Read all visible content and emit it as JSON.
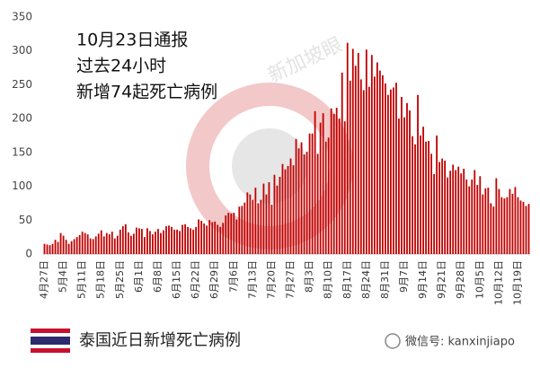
{
  "chart_data": {
    "type": "bar",
    "annotation": [
      "10月23日通报",
      "过去24小时",
      "新增74起死亡病例"
    ],
    "watermark": "新加坡眼",
    "caption": "泰国近日新增死亡病例",
    "source": "微信号: kanxinjiapo",
    "color": "#c00000",
    "ylim": [
      0,
      350
    ],
    "yticks": [
      0,
      50,
      100,
      150,
      200,
      250,
      300,
      350
    ],
    "grid": false,
    "categories": [
      "4月27日",
      null,
      null,
      null,
      null,
      null,
      null,
      "5月4日",
      null,
      null,
      null,
      null,
      null,
      null,
      "5月11日",
      null,
      null,
      null,
      null,
      null,
      null,
      "5月18日",
      null,
      null,
      null,
      null,
      null,
      null,
      "5月25日",
      null,
      null,
      null,
      null,
      null,
      null,
      "6月1日",
      null,
      null,
      null,
      null,
      null,
      null,
      "6月8日",
      null,
      null,
      null,
      null,
      null,
      null,
      "6月15日",
      null,
      null,
      null,
      null,
      null,
      null,
      "6月22日",
      null,
      null,
      null,
      null,
      null,
      null,
      "6月29日",
      null,
      null,
      null,
      null,
      null,
      null,
      "7月6日",
      null,
      null,
      null,
      null,
      null,
      null,
      "7月13日",
      null,
      null,
      null,
      null,
      null,
      null,
      "7月20日",
      null,
      null,
      null,
      null,
      null,
      null,
      "7月27日",
      null,
      null,
      null,
      null,
      null,
      null,
      "8月3日",
      null,
      null,
      null,
      null,
      null,
      null,
      "8月10日",
      null,
      null,
      null,
      null,
      null,
      null,
      "8月17日",
      null,
      null,
      null,
      null,
      null,
      null,
      "8月24日",
      null,
      null,
      null,
      null,
      null,
      null,
      "8月31日",
      null,
      null,
      null,
      null,
      null,
      null,
      "9月7日",
      null,
      null,
      null,
      null,
      null,
      null,
      "9月14日",
      null,
      null,
      null,
      null,
      null,
      null,
      "9月21日",
      null,
      null,
      null,
      null,
      null,
      null,
      "9月28日",
      null,
      null,
      null,
      null,
      null,
      null,
      "10月5日",
      null,
      null,
      null,
      null,
      null,
      null,
      "10月12日",
      null,
      null,
      null,
      null,
      null,
      null,
      "10月19日",
      null,
      null,
      null,
      null
    ],
    "values": [
      15,
      14,
      13,
      15,
      21,
      18,
      31,
      27,
      21,
      15,
      19,
      22,
      25,
      28,
      33,
      31,
      29,
      23,
      22,
      26,
      30,
      35,
      26,
      31,
      29,
      33,
      23,
      27,
      36,
      41,
      44,
      32,
      27,
      30,
      39,
      38,
      37,
      25,
      38,
      34,
      29,
      33,
      37,
      31,
      35,
      41,
      42,
      40,
      36,
      36,
      34,
      43,
      44,
      40,
      38,
      36,
      40,
      51,
      49,
      45,
      42,
      50,
      47,
      48,
      43,
      40,
      46,
      57,
      61,
      60,
      61,
      51,
      70,
      71,
      76,
      91,
      88,
      80,
      98,
      75,
      80,
      104,
      88,
      106,
      73,
      117,
      101,
      114,
      133,
      125,
      130,
      141,
      131,
      170,
      156,
      165,
      147,
      151,
      178,
      178,
      211,
      148,
      194,
      208,
      166,
      172,
      215,
      207,
      216,
      200,
      268,
      196,
      312,
      256,
      303,
      278,
      297,
      258,
      242,
      302,
      247,
      294,
      262,
      283,
      271,
      264,
      252,
      235,
      243,
      246,
      253,
      200,
      232,
      202,
      223,
      212,
      174,
      162,
      235,
      175,
      188,
      166,
      167,
      148,
      118,
      175,
      136,
      141,
      138,
      113,
      123,
      132,
      124,
      129,
      119,
      126,
      110,
      100,
      110,
      124,
      102,
      115,
      88,
      97,
      98,
      75,
      70,
      112,
      96,
      84,
      82,
      84,
      96,
      89,
      99,
      84,
      79,
      77,
      71,
      74
    ]
  }
}
